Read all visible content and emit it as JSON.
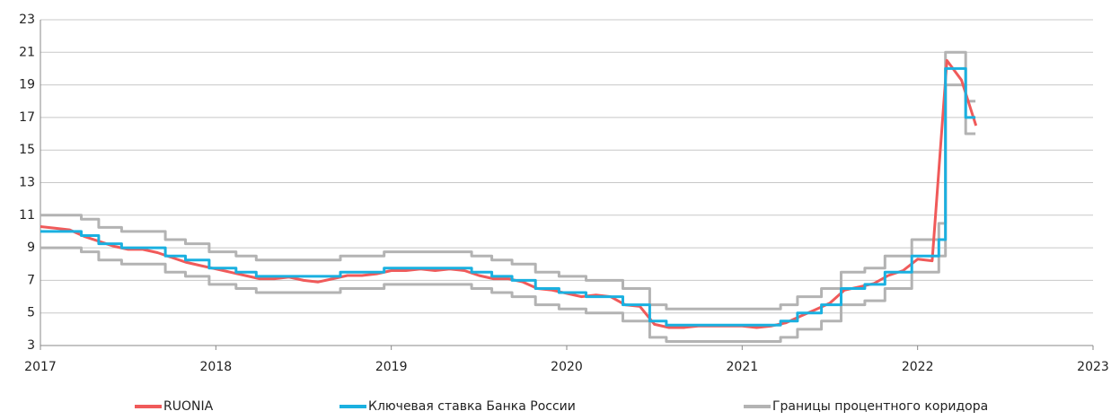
{
  "chart_data": {
    "type": "line",
    "xlim": [
      2017,
      2023
    ],
    "xticks": [
      2017,
      2018,
      2019,
      2020,
      2021,
      2022,
      2023
    ],
    "ylim": [
      3,
      23
    ],
    "yticks": [
      3,
      5,
      7,
      9,
      11,
      13,
      15,
      17,
      19,
      21,
      23
    ],
    "grid": true,
    "series": [
      {
        "name": "RUONIA",
        "color": "#f05a5a",
        "x": [
          2017,
          2017.083,
          2017.167,
          2017.25,
          2017.333,
          2017.417,
          2017.5,
          2017.583,
          2017.667,
          2017.75,
          2017.833,
          2017.917,
          2018,
          2018.083,
          2018.167,
          2018.25,
          2018.333,
          2018.417,
          2018.5,
          2018.583,
          2018.667,
          2018.75,
          2018.833,
          2018.917,
          2019,
          2019.083,
          2019.167,
          2019.25,
          2019.333,
          2019.417,
          2019.5,
          2019.583,
          2019.667,
          2019.75,
          2019.833,
          2019.917,
          2020,
          2020.083,
          2020.167,
          2020.25,
          2020.333,
          2020.417,
          2020.5,
          2020.583,
          2020.667,
          2020.75,
          2020.833,
          2020.917,
          2021,
          2021.083,
          2021.167,
          2021.25,
          2021.333,
          2021.417,
          2021.5,
          2021.583,
          2021.667,
          2021.75,
          2021.833,
          2021.917,
          2022,
          2022.083,
          2022.167,
          2022.25,
          2022.333
        ],
        "values": [
          10.3,
          10.2,
          10.1,
          9.7,
          9.4,
          9.1,
          8.9,
          8.9,
          8.7,
          8.4,
          8.1,
          7.9,
          7.7,
          7.5,
          7.3,
          7.1,
          7.1,
          7.2,
          7.0,
          6.9,
          7.1,
          7.3,
          7.3,
          7.4,
          7.6,
          7.6,
          7.7,
          7.6,
          7.7,
          7.6,
          7.3,
          7.1,
          7.1,
          6.9,
          6.5,
          6.4,
          6.2,
          6.0,
          6.1,
          6.0,
          5.5,
          5.4,
          4.3,
          4.1,
          4.1,
          4.2,
          4.2,
          4.2,
          4.2,
          4.1,
          4.2,
          4.4,
          4.8,
          5.2,
          5.6,
          6.4,
          6.6,
          6.8,
          7.3,
          7.6,
          8.3,
          8.2,
          20.5,
          19.3,
          16.5
        ]
      },
      {
        "name": "Ключевая ставка Банка России",
        "color": "#1ab0e0",
        "x": [
          2017,
          2017.233,
          2017.233,
          2017.332,
          2017.332,
          2017.463,
          2017.463,
          2017.712,
          2017.712,
          2017.827,
          2017.827,
          2017.962,
          2017.962,
          2018.115,
          2018.115,
          2018.23,
          2018.23,
          2018.71,
          2018.71,
          2018.959,
          2018.959,
          2019.458,
          2019.458,
          2019.573,
          2019.573,
          2019.688,
          2019.688,
          2019.822,
          2019.822,
          2019.956,
          2019.956,
          2020.11,
          2020.11,
          2020.32,
          2020.32,
          2020.473,
          2020.473,
          2020.568,
          2020.568,
          2021.219,
          2021.219,
          2021.315,
          2021.315,
          2021.452,
          2021.452,
          2021.564,
          2021.564,
          2021.699,
          2021.699,
          2021.814,
          2021.814,
          2021.967,
          2021.967,
          2022.121,
          2022.121,
          2022.159,
          2022.159,
          2022.274,
          2022.274,
          2022.33
        ],
        "values": [
          10,
          10,
          9.75,
          9.75,
          9.25,
          9.25,
          9,
          9,
          8.5,
          8.5,
          8.25,
          8.25,
          7.75,
          7.75,
          7.5,
          7.5,
          7.25,
          7.25,
          7.5,
          7.5,
          7.75,
          7.75,
          7.5,
          7.5,
          7.25,
          7.25,
          7,
          7,
          6.5,
          6.5,
          6.25,
          6.25,
          6,
          6,
          5.5,
          5.5,
          4.5,
          4.5,
          4.25,
          4.25,
          4.5,
          4.5,
          5,
          5,
          5.5,
          5.5,
          6.5,
          6.5,
          6.75,
          6.75,
          7.5,
          7.5,
          8.5,
          8.5,
          9.5,
          9.5,
          20,
          20,
          17,
          17
        ]
      },
      {
        "name": "Границы процентного коридора",
        "color": "#b3b3b3",
        "x": [
          2017,
          2017.233,
          2017.233,
          2017.332,
          2017.332,
          2017.463,
          2017.463,
          2017.712,
          2017.712,
          2017.827,
          2017.827,
          2017.962,
          2017.962,
          2018.115,
          2018.115,
          2018.23,
          2018.23,
          2018.71,
          2018.71,
          2018.959,
          2018.959,
          2019.458,
          2019.458,
          2019.573,
          2019.573,
          2019.688,
          2019.688,
          2019.822,
          2019.822,
          2019.956,
          2019.956,
          2020.11,
          2020.11,
          2020.32,
          2020.32,
          2020.473,
          2020.473,
          2020.568,
          2020.568,
          2021.219,
          2021.219,
          2021.315,
          2021.315,
          2021.452,
          2021.452,
          2021.564,
          2021.564,
          2021.699,
          2021.699,
          2021.814,
          2021.814,
          2021.967,
          2021.967,
          2022.121,
          2022.121,
          2022.159,
          2022.159,
          2022.274,
          2022.274,
          2022.33
        ],
        "values": [
          11,
          11,
          10.75,
          10.75,
          10.25,
          10.25,
          10,
          10,
          9.5,
          9.5,
          9.25,
          9.25,
          8.75,
          8.75,
          8.5,
          8.5,
          8.25,
          8.25,
          8.5,
          8.5,
          8.75,
          8.75,
          8.5,
          8.5,
          8.25,
          8.25,
          8,
          8,
          7.5,
          7.5,
          7.25,
          7.25,
          7,
          7,
          6.5,
          6.5,
          5.5,
          5.5,
          5.25,
          5.25,
          5.5,
          5.5,
          6,
          6,
          6.5,
          6.5,
          7.5,
          7.5,
          7.75,
          7.75,
          8.5,
          8.5,
          9.5,
          9.5,
          10.5,
          10.5,
          21,
          21,
          18,
          18
        ],
        "lower": [
          9,
          9,
          8.75,
          8.75,
          8.25,
          8.25,
          8,
          8,
          7.5,
          7.5,
          7.25,
          7.25,
          6.75,
          6.75,
          6.5,
          6.5,
          6.25,
          6.25,
          6.5,
          6.5,
          6.75,
          6.75,
          6.5,
          6.5,
          6.25,
          6.25,
          6,
          6,
          5.5,
          5.5,
          5.25,
          5.25,
          5,
          5,
          4.5,
          4.5,
          3.5,
          3.5,
          3.25,
          3.25,
          3.5,
          3.5,
          4,
          4,
          4.5,
          4.5,
          5.5,
          5.5,
          5.75,
          5.75,
          6.5,
          6.5,
          7.5,
          7.5,
          8.5,
          8.5,
          19,
          19,
          16,
          16
        ]
      }
    ]
  }
}
